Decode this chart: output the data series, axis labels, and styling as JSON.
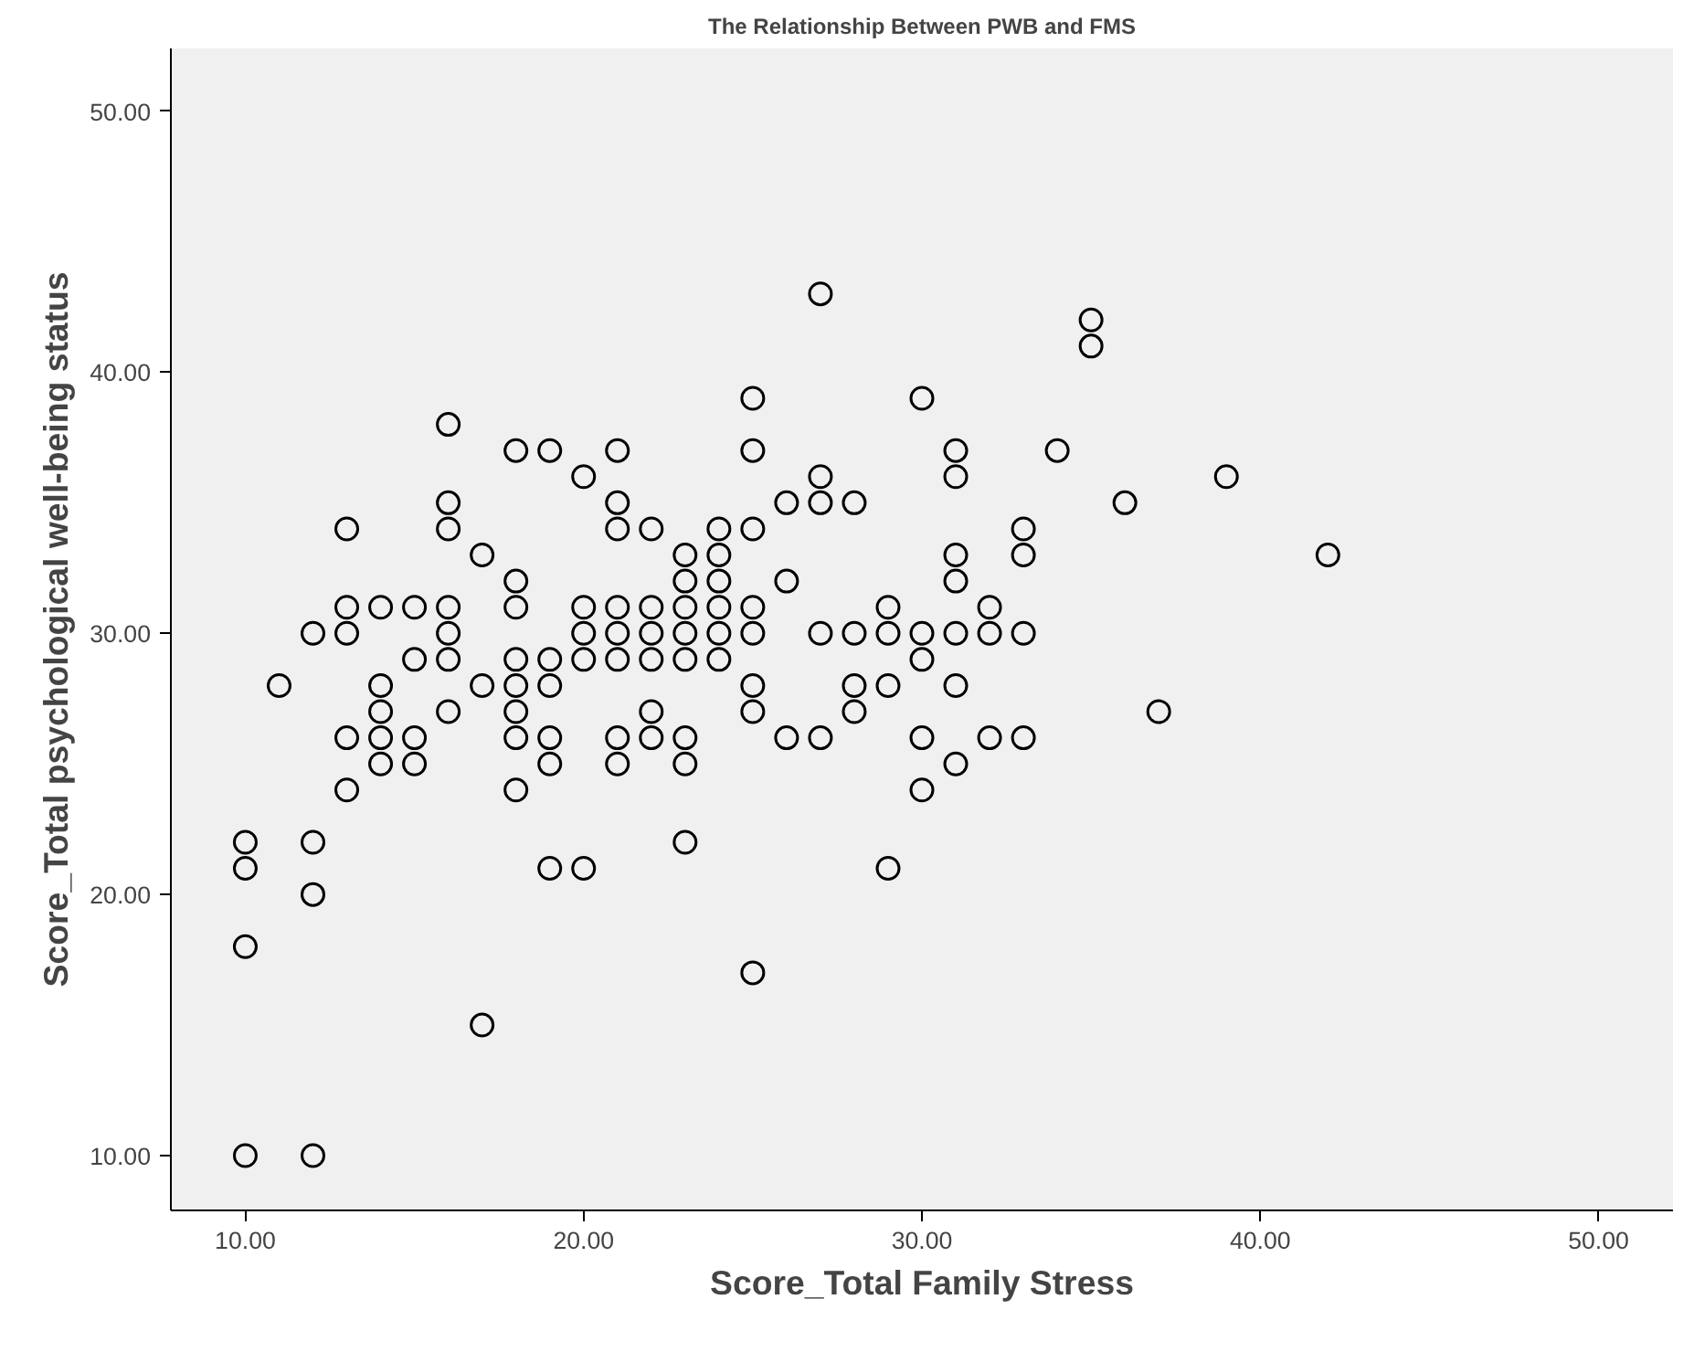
{
  "chart_data": {
    "type": "scatter",
    "title": "The Relationship Between PWB and FMS",
    "xlabel": "Score_Total Family Stress",
    "ylabel": "Score_Total psychological well-being status",
    "marker": "circle",
    "grid": false,
    "xlim": [
      7.8,
      52.2
    ],
    "ylim": [
      7.9,
      52.4
    ],
    "xticks": [
      {
        "value": 10,
        "label": "10.00"
      },
      {
        "value": 20,
        "label": "20.00"
      },
      {
        "value": 30,
        "label": "30.00"
      },
      {
        "value": 40,
        "label": "40.00"
      },
      {
        "value": 50,
        "label": "50.00"
      }
    ],
    "yticks": [
      {
        "value": 10,
        "label": "10.00"
      },
      {
        "value": 20,
        "label": "20.00"
      },
      {
        "value": 30,
        "label": "30.00"
      },
      {
        "value": 40,
        "label": "40.00"
      },
      {
        "value": 50,
        "label": "50.00"
      }
    ],
    "series": [
      {
        "color": "#000000",
        "x": [
          10,
          10,
          10,
          10,
          11,
          12,
          12,
          12,
          12,
          13,
          13,
          13,
          13,
          13,
          14,
          14,
          14,
          14,
          14,
          15,
          15,
          15,
          15,
          16,
          16,
          16,
          16,
          16,
          16,
          16,
          17,
          17,
          17,
          18,
          18,
          18,
          18,
          18,
          18,
          18,
          18,
          19,
          19,
          19,
          19,
          19,
          19,
          20,
          20,
          20,
          20,
          20,
          21,
          21,
          21,
          21,
          21,
          21,
          21,
          21,
          22,
          22,
          22,
          22,
          22,
          22,
          23,
          23,
          23,
          23,
          23,
          23,
          23,
          23,
          24,
          24,
          24,
          24,
          24,
          24,
          25,
          25,
          25,
          25,
          25,
          25,
          25,
          25,
          26,
          26,
          26,
          27,
          27,
          27,
          27,
          27,
          28,
          28,
          28,
          28,
          29,
          29,
          29,
          29,
          30,
          30,
          30,
          30,
          30,
          31,
          31,
          31,
          31,
          31,
          31,
          31,
          32,
          32,
          32,
          33,
          33,
          33,
          33,
          34,
          35,
          35,
          36,
          37,
          39,
          42
        ],
        "values": [
          22,
          21,
          18,
          10,
          28,
          30,
          22,
          20,
          10,
          34,
          31,
          30,
          26,
          24,
          31,
          28,
          27,
          26,
          25,
          31,
          29,
          26,
          25,
          38,
          35,
          34,
          31,
          30,
          29,
          27,
          33,
          28,
          15,
          37,
          32,
          31,
          29,
          28,
          27,
          26,
          24,
          37,
          29,
          28,
          26,
          25,
          21,
          36,
          31,
          30,
          29,
          21,
          37,
          35,
          34,
          31,
          30,
          29,
          26,
          25,
          34,
          31,
          30,
          29,
          27,
          26,
          33,
          32,
          31,
          30,
          29,
          26,
          25,
          22,
          34,
          33,
          32,
          31,
          30,
          29,
          39,
          37,
          34,
          31,
          30,
          28,
          27,
          17,
          35,
          32,
          26,
          43,
          36,
          35,
          30,
          26,
          35,
          30,
          28,
          27,
          31,
          30,
          28,
          21,
          39,
          30,
          29,
          26,
          24,
          37,
          36,
          33,
          32,
          30,
          28,
          25,
          31,
          30,
          26,
          34,
          33,
          30,
          26,
          37,
          42,
          41,
          35,
          27,
          36,
          33
        ]
      }
    ]
  }
}
